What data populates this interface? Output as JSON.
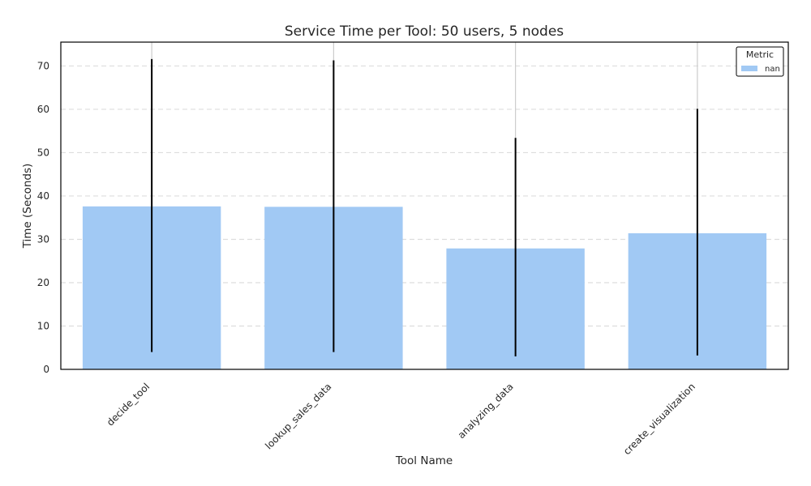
{
  "chart_data": {
    "type": "bar",
    "title": "Service Time per Tool: 50 users, 5 nodes",
    "xlabel": "Tool Name",
    "ylabel": "Time (Seconds)",
    "ylim": [
      0,
      75.5
    ],
    "yticks": [
      0,
      10,
      20,
      30,
      40,
      50,
      60,
      70
    ],
    "grid": true,
    "categories": [
      "decide_tool",
      "lookup_sales_data",
      "analyzing_data",
      "create_visualization"
    ],
    "series": [
      {
        "name": "nan",
        "values": [
          37.6,
          37.5,
          27.9,
          31.4
        ],
        "error_low": [
          4.0,
          4.0,
          3.0,
          3.2
        ],
        "error_high": [
          71.6,
          71.3,
          53.4,
          60.1
        ],
        "color": "#a1c9f4"
      }
    ],
    "legend": {
      "title": "Metric",
      "placement": "top-right"
    },
    "colors": {
      "bar": "#a1c9f4",
      "error_bar": "#000000",
      "grid": "#dddddd",
      "frame": "#000000"
    }
  }
}
